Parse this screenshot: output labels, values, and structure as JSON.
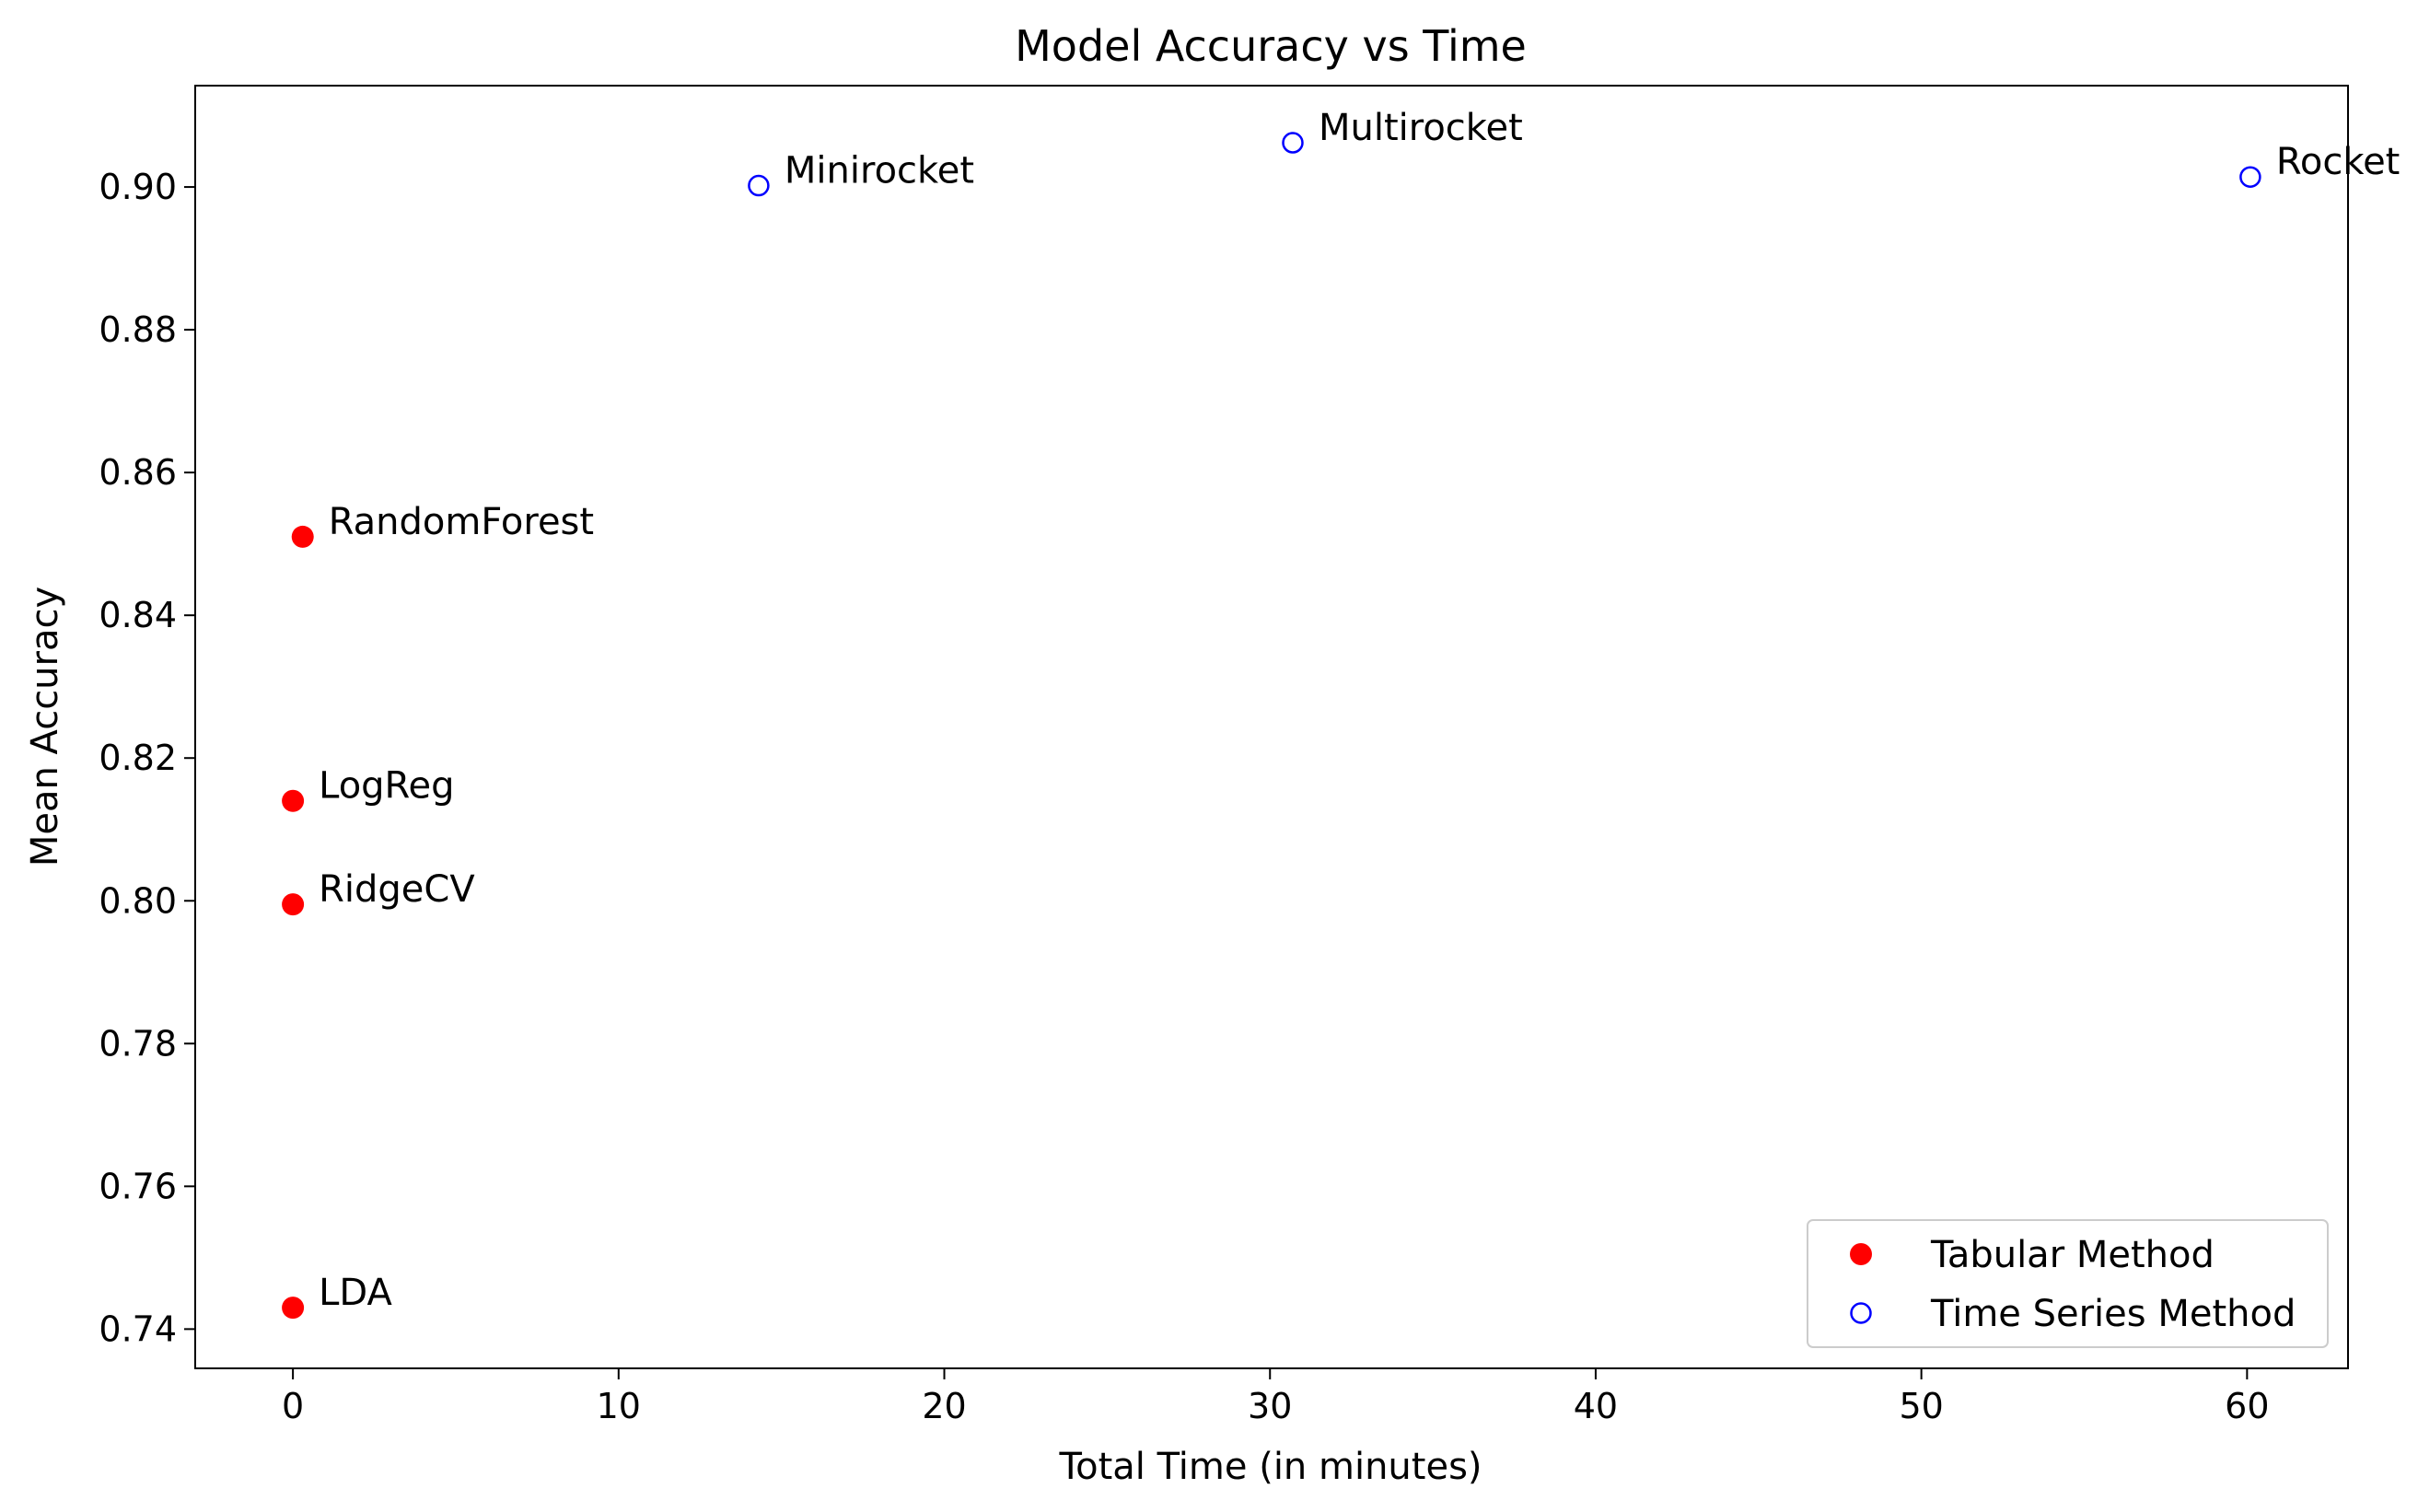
{
  "chart_data": {
    "type": "scatter",
    "title": "Model Accuracy vs Time",
    "xlabel": "Total Time (in minutes)",
    "ylabel": "Mean Accuracy",
    "xlim": [
      -3.0,
      63.1
    ],
    "ylim": [
      0.7345,
      0.9142
    ],
    "xticks": [
      0,
      10,
      20,
      30,
      40,
      50,
      60
    ],
    "xtick_labels": [
      "0",
      "10",
      "20",
      "30",
      "40",
      "50",
      "60"
    ],
    "yticks": [
      0.74,
      0.76,
      0.78,
      0.8,
      0.82,
      0.84,
      0.86,
      0.88,
      0.9
    ],
    "ytick_labels": [
      "0.74",
      "0.76",
      "0.78",
      "0.80",
      "0.82",
      "0.84",
      "0.86",
      "0.88",
      "0.90"
    ],
    "grid": false,
    "legend_position": "lower-right",
    "series": [
      {
        "name": "Tabular Method",
        "marker": "filled-circle",
        "color": "#ff0000",
        "points": [
          {
            "label": "RandomForest",
            "x": 0.3,
            "y": 0.851
          },
          {
            "label": "LogReg",
            "x": 0.0,
            "y": 0.814
          },
          {
            "label": "RidgeCV",
            "x": 0.0,
            "y": 0.7995
          },
          {
            "label": "LDA",
            "x": 0.0,
            "y": 0.743
          }
        ]
      },
      {
        "name": "Time Series Method",
        "marker": "hollow-circle",
        "color": "#0000ff",
        "points": [
          {
            "label": "Minirocket",
            "x": 14.3,
            "y": 0.9002
          },
          {
            "label": "Multirocket",
            "x": 30.7,
            "y": 0.9062
          },
          {
            "label": "Rocket",
            "x": 60.1,
            "y": 0.9014
          }
        ]
      }
    ]
  }
}
